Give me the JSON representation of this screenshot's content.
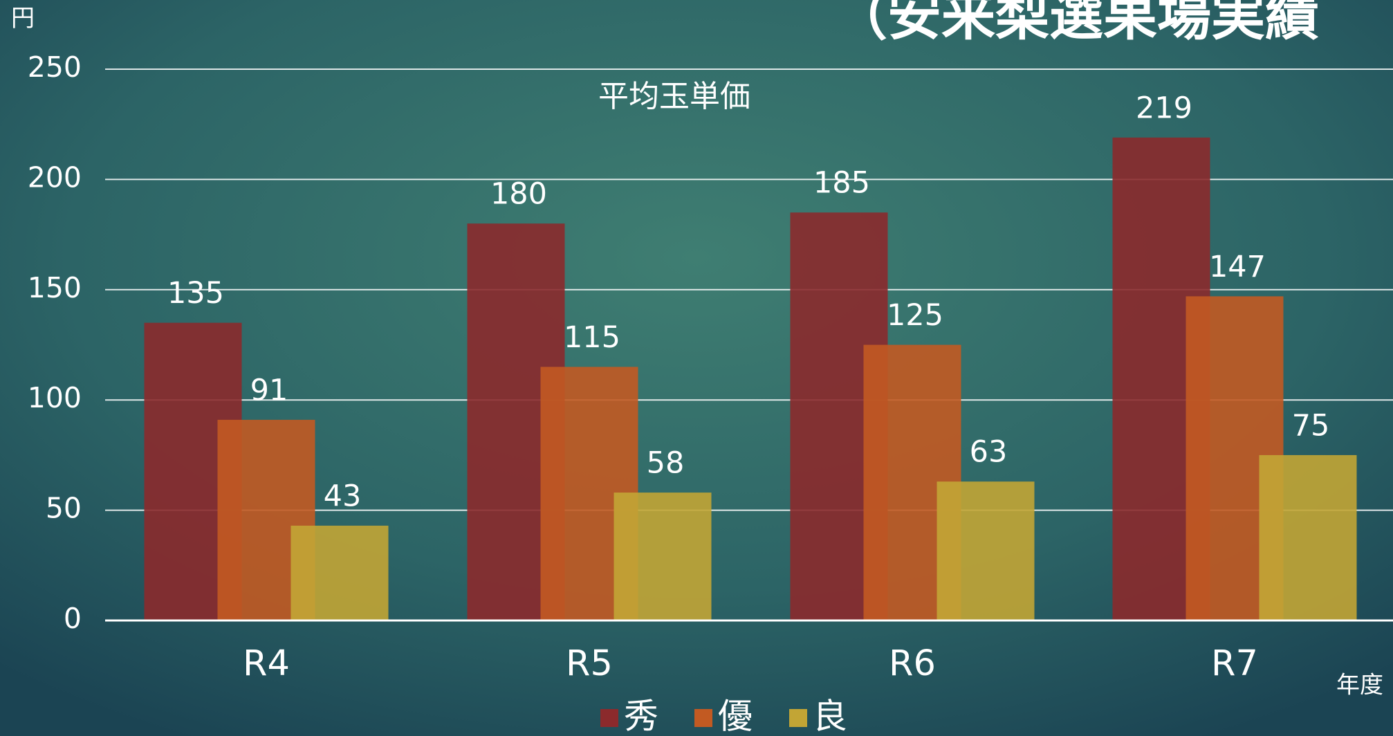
{
  "heading": "（安来梨選果場実績",
  "chart_data": {
    "type": "bar",
    "title": "平均玉単価",
    "y_label": "円",
    "x_label": "年度",
    "categories": [
      "R4",
      "R5",
      "R6",
      "R7"
    ],
    "series": [
      {
        "name": "秀",
        "color": "#8b2a2c",
        "values": [
          135,
          180,
          185,
          219
        ]
      },
      {
        "name": "優",
        "color": "#c25a22",
        "values": [
          91,
          115,
          125,
          147
        ]
      },
      {
        "name": "良",
        "color": "#c2a535",
        "values": [
          43,
          58,
          63,
          75
        ]
      }
    ],
    "ylim": [
      0,
      250
    ],
    "yticks": [
      0,
      50,
      100,
      150,
      200,
      250
    ],
    "grid": true,
    "legend": "bottom"
  }
}
